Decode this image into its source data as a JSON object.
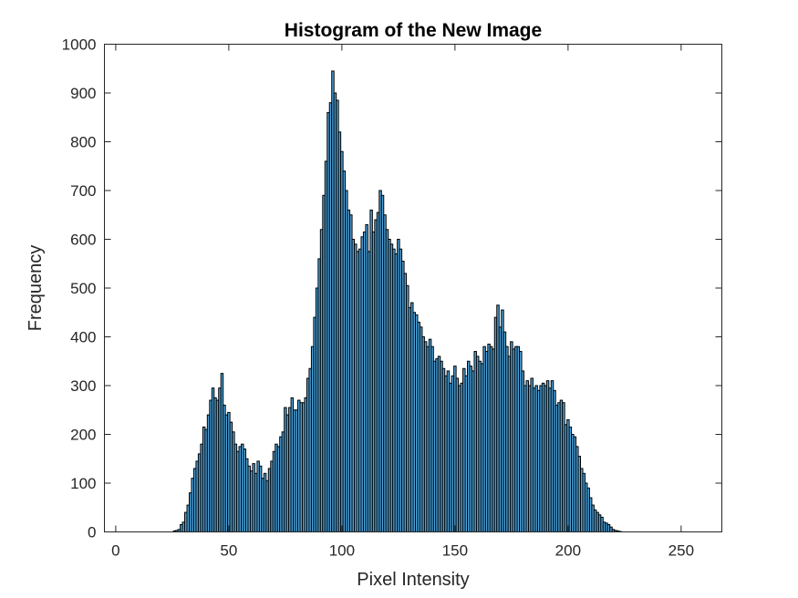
{
  "chart_data": {
    "type": "bar",
    "title": "Histogram of the New Image",
    "xlabel": "Pixel Intensity",
    "ylabel": "Frequency",
    "xlim": [
      -5,
      268
    ],
    "ylim": [
      0,
      1000
    ],
    "x_ticks": [
      0,
      50,
      100,
      150,
      200,
      250
    ],
    "y_ticks": [
      0,
      100,
      200,
      300,
      400,
      500,
      600,
      700,
      800,
      900,
      1000
    ],
    "bar_color": "#4DA6DF",
    "edge_color": "#000000",
    "grid": false,
    "legend": "none",
    "bin_start": 0,
    "bin_width": 1,
    "values": [
      0,
      0,
      0,
      0,
      0,
      0,
      0,
      0,
      0,
      0,
      0,
      0,
      0,
      0,
      0,
      0,
      0,
      0,
      0,
      0,
      0,
      0,
      0,
      0,
      0,
      0,
      2,
      3,
      5,
      15,
      20,
      40,
      55,
      80,
      110,
      130,
      145,
      160,
      180,
      215,
      210,
      240,
      270,
      295,
      275,
      270,
      295,
      325,
      260,
      240,
      245,
      225,
      205,
      180,
      165,
      175,
      180,
      170,
      150,
      135,
      125,
      140,
      120,
      145,
      135,
      110,
      120,
      105,
      130,
      145,
      165,
      180,
      175,
      195,
      205,
      255,
      240,
      255,
      275,
      250,
      250,
      270,
      265,
      265,
      275,
      315,
      335,
      380,
      440,
      500,
      560,
      620,
      690,
      760,
      860,
      880,
      945,
      900,
      885,
      820,
      780,
      740,
      700,
      660,
      650,
      600,
      590,
      575,
      580,
      605,
      615,
      630,
      575,
      660,
      615,
      640,
      655,
      700,
      690,
      650,
      620,
      600,
      590,
      580,
      570,
      600,
      580,
      555,
      530,
      505,
      460,
      470,
      450,
      445,
      430,
      420,
      400,
      390,
      380,
      395,
      380,
      350,
      355,
      360,
      350,
      335,
      320,
      330,
      305,
      320,
      340,
      315,
      300,
      305,
      335,
      320,
      350,
      340,
      330,
      370,
      360,
      350,
      345,
      380,
      370,
      385,
      380,
      375,
      440,
      465,
      420,
      455,
      410,
      380,
      360,
      390,
      375,
      380,
      380,
      370,
      330,
      300,
      310,
      300,
      315,
      295,
      300,
      290,
      300,
      305,
      300,
      310,
      295,
      310,
      290,
      260,
      265,
      270,
      265,
      220,
      230,
      215,
      200,
      195,
      175,
      155,
      130,
      120,
      100,
      90,
      70,
      55,
      45,
      40,
      35,
      30,
      20,
      18,
      15,
      10,
      5,
      3,
      2,
      1,
      0,
      0,
      0,
      0,
      0,
      0,
      0,
      0,
      0,
      0,
      0,
      0,
      0,
      0,
      0,
      0,
      0,
      0,
      0,
      0,
      0,
      0,
      0,
      0
    ]
  }
}
